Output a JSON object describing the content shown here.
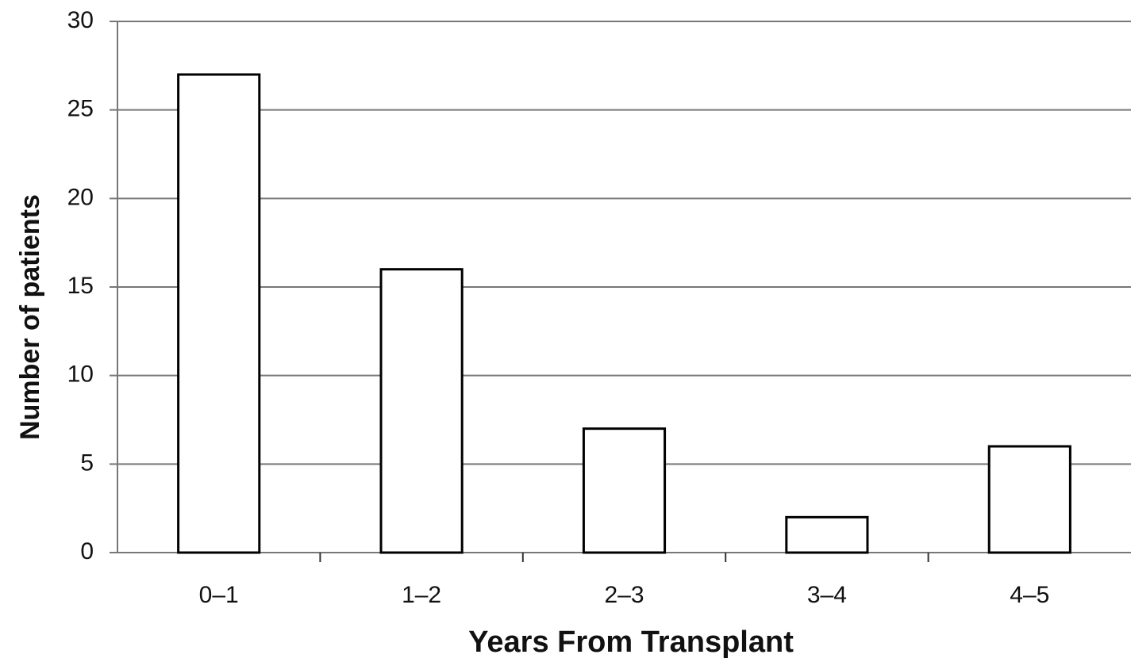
{
  "chart_data": {
    "type": "bar",
    "xlabel": "Years From Transplant",
    "ylabel": "Number of patients",
    "categories": [
      "0–1",
      "1–2",
      "2–3",
      "3–4",
      "4–5"
    ],
    "values": [
      27,
      16,
      7,
      2,
      6
    ],
    "color": "#ffffff",
    "ylim": [
      0,
      30
    ],
    "yticks": [
      0,
      5,
      10,
      15,
      20,
      25,
      30
    ],
    "grid": true
  }
}
